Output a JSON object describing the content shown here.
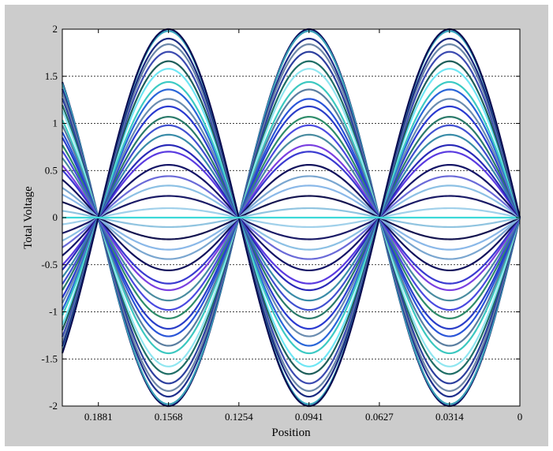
{
  "chart_data": {
    "type": "line",
    "title": "",
    "xlabel": "Position",
    "ylabel": "Total Voltage",
    "xlim_reversed": [
      0.2042,
      0
    ],
    "ylim": [
      -2,
      2
    ],
    "x_ticks": [
      {
        "value": 0.1881,
        "label": "0.1881"
      },
      {
        "value": 0.1568,
        "label": "0.1568"
      },
      {
        "value": 0.1254,
        "label": "0.1254"
      },
      {
        "value": 0.0941,
        "label": "0.0941"
      },
      {
        "value": 0.0627,
        "label": "0.0627"
      },
      {
        "value": 0.0314,
        "label": "0.0314"
      },
      {
        "value": 0,
        "label": "0"
      }
    ],
    "y_ticks": [
      {
        "value": 2,
        "label": "2"
      },
      {
        "value": 1.5,
        "label": "1.5"
      },
      {
        "value": 1,
        "label": "1"
      },
      {
        "value": 0.5,
        "label": "0.5"
      },
      {
        "value": 0,
        "label": "0"
      },
      {
        "value": -0.5,
        "label": "-0.5"
      },
      {
        "value": -1,
        "label": "-1"
      },
      {
        "value": -1.5,
        "label": "-1.5"
      },
      {
        "value": -2,
        "label": "-2"
      }
    ],
    "grid": {
      "y_major": true,
      "x_major": false,
      "style": "dashed"
    },
    "legend": "none",
    "wave": {
      "shape": "standing sine, nodes at multiples of 0.0627",
      "wavelength": 0.12545
    },
    "series": [
      {
        "amplitude": 2.0,
        "color": "#0b0b5c"
      },
      {
        "amplitude": 1.98,
        "color": "#3aa0b8"
      },
      {
        "amplitude": 1.9,
        "color": "#1e2f8c"
      },
      {
        "amplitude": 1.84,
        "color": "#6e86a6"
      },
      {
        "amplitude": 1.76,
        "color": "#2c3f9e"
      },
      {
        "amplitude": 1.66,
        "color": "#1f6e66"
      },
      {
        "amplitude": 1.58,
        "color": "#8fe6f0"
      },
      {
        "amplitude": 1.44,
        "color": "#3cc8c0"
      },
      {
        "amplitude": 1.36,
        "color": "#5a7ea0"
      },
      {
        "amplitude": 1.26,
        "color": "#2a55d8"
      },
      {
        "amplitude": 1.18,
        "color": "#2a3ec8"
      },
      {
        "amplitude": 1.07,
        "color": "#2e8c6a"
      },
      {
        "amplitude": 0.98,
        "color": "#4a4ae0"
      },
      {
        "amplitude": 0.88,
        "color": "#4a8ca0"
      },
      {
        "amplitude": 0.77,
        "color": "#7a40e0"
      },
      {
        "amplitude": 0.7,
        "color": "#3a3ad0"
      },
      {
        "amplitude": 0.56,
        "color": "#12125c"
      },
      {
        "amplitude": 0.44,
        "color": "#7aa6d0"
      },
      {
        "amplitude": 0.34,
        "color": "#8ab8e8"
      },
      {
        "amplitude": 0.23,
        "color": "#141450"
      },
      {
        "amplitude": 0.1,
        "color": "#90c4e0"
      },
      {
        "amplitude": -0.1,
        "color": "#a0d0ea"
      },
      {
        "amplitude": -0.23,
        "color": "#1a1a66"
      },
      {
        "amplitude": -0.34,
        "color": "#8cc0e4"
      },
      {
        "amplitude": -0.44,
        "color": "#6a6ad8"
      },
      {
        "amplitude": -0.56,
        "color": "#141466"
      },
      {
        "amplitude": -0.7,
        "color": "#5a3ae0"
      },
      {
        "amplitude": -0.77,
        "color": "#2a2ab8"
      },
      {
        "amplitude": -0.88,
        "color": "#3a8ca8"
      },
      {
        "amplitude": -0.98,
        "color": "#4050d0"
      },
      {
        "amplitude": -1.07,
        "color": "#2a7a6a"
      },
      {
        "amplitude": -1.18,
        "color": "#2a3ad0"
      },
      {
        "amplitude": -1.26,
        "color": "#6a8cb0"
      },
      {
        "amplitude": -1.36,
        "color": "#2a66d8"
      },
      {
        "amplitude": -1.44,
        "color": "#3ccac4"
      },
      {
        "amplitude": -1.58,
        "color": "#6ee6f4"
      },
      {
        "amplitude": -1.66,
        "color": "#1e5e5a"
      },
      {
        "amplitude": -1.76,
        "color": "#3b4ab0"
      },
      {
        "amplitude": -1.84,
        "color": "#6a86a8"
      },
      {
        "amplitude": -1.9,
        "color": "#1a2a80"
      },
      {
        "amplitude": -1.98,
        "color": "#3aa8c0"
      },
      {
        "amplitude": -2.0,
        "color": "#0a0a50"
      },
      {
        "amplitude": 0.0,
        "color": "#3cd8d8"
      }
    ]
  }
}
